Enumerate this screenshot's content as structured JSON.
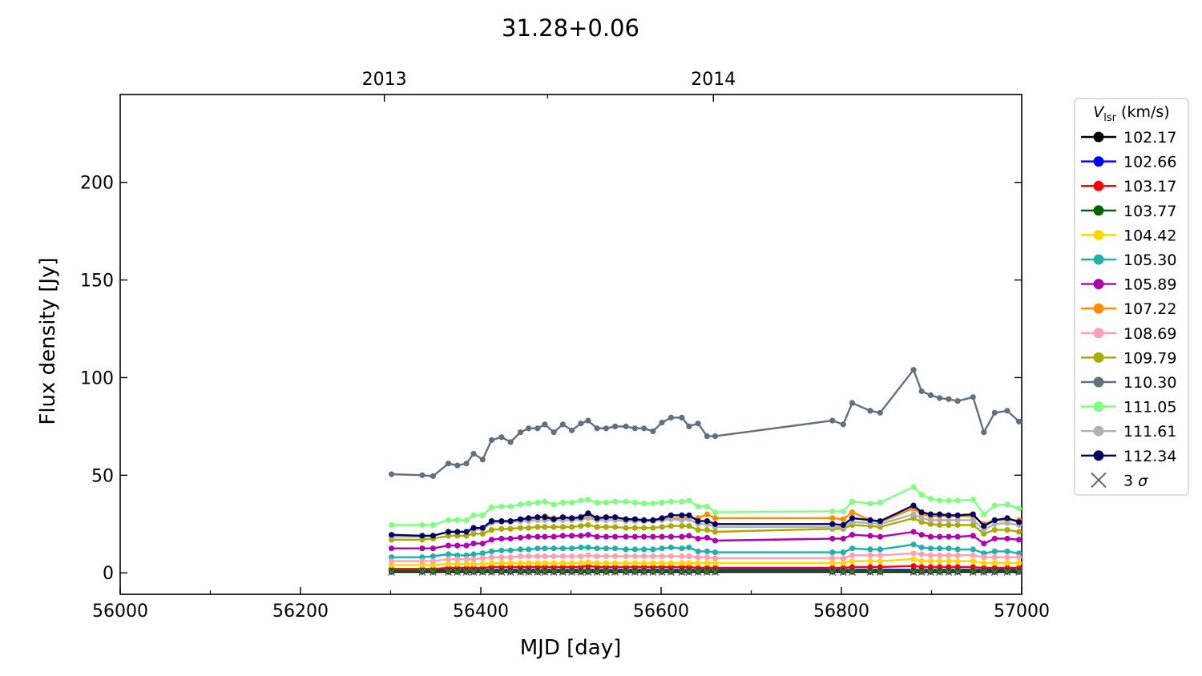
{
  "chart_data": {
    "type": "line",
    "title": "31.28+0.06",
    "xlabel": "MJD [day]",
    "ylabel": "Flux density [Jy]",
    "xlim": [
      56000,
      57000
    ],
    "ylim": [
      -11,
      245
    ],
    "x_ticks": [
      56000,
      56200,
      56400,
      56600,
      56800,
      57000
    ],
    "x_minor_ticks": [
      56100,
      56300,
      56500,
      56700,
      56900
    ],
    "y_ticks": [
      0,
      50,
      100,
      150,
      200
    ],
    "top_axis": {
      "ticks": [
        {
          "x": 56293,
          "label": "2013"
        },
        {
          "x": 56658,
          "label": "2014"
        }
      ],
      "minor_ticks": [
        56474
      ]
    },
    "grid": false,
    "legend": {
      "title_main": "V",
      "title_sub": "lsr",
      "title_unit": " (km/s)",
      "placement": "right-outside-top",
      "sigma_label": "3 σ",
      "sigma_color": "#666666"
    },
    "x": [
      56301,
      56335,
      56347,
      56364,
      56374,
      56384,
      56392,
      56402,
      56412,
      56423,
      56433,
      56444,
      56453,
      56463,
      56471,
      56481,
      56491,
      56501,
      56511,
      56519,
      56529,
      56539,
      56549,
      56561,
      56571,
      56581,
      56591,
      56601,
      56611,
      56623,
      56631,
      56641,
      56651,
      56660,
      56790,
      56802,
      56812,
      56832,
      56843,
      56880,
      56889,
      56899,
      56909,
      56919,
      56929,
      56946,
      56958,
      56970,
      56984,
      56997
    ],
    "upper_limit_x": [
      56301,
      56335,
      56347,
      56364,
      56374,
      56384,
      56392,
      56402,
      56412,
      56423,
      56433,
      56444,
      56453,
      56463,
      56471,
      56481,
      56491,
      56501,
      56511,
      56519,
      56529,
      56539,
      56549,
      56561,
      56571,
      56581,
      56591,
      56601,
      56611,
      56623,
      56631,
      56641,
      56651,
      56660,
      56790,
      56802,
      56812,
      56832,
      56843,
      56880,
      56889,
      56899,
      56909,
      56919,
      56929,
      56946,
      56958,
      56970,
      56984,
      56997
    ],
    "series": [
      {
        "name": "102.17",
        "color": "#000000",
        "values": [
          0.5,
          0.5,
          0.5,
          0.5,
          0.5,
          0.5,
          0.5,
          0.5,
          0.5,
          0.5,
          0.5,
          0.5,
          0.5,
          0.5,
          0.5,
          0.5,
          0.5,
          0.5,
          0.5,
          0.5,
          0.5,
          0.5,
          0.5,
          0.5,
          0.5,
          0.5,
          0.5,
          0.5,
          0.5,
          0.5,
          0.5,
          0.5,
          0.5,
          0.5,
          0.5,
          0.5,
          0.5,
          0.5,
          0.5,
          0.5,
          0.5,
          0.5,
          0.5,
          0.5,
          0.5,
          0.5,
          0.5,
          0.5,
          0.5,
          0.5
        ]
      },
      {
        "name": "102.66",
        "color": "#0000ff",
        "values": [
          1.5,
          1.5,
          1.5,
          1.5,
          1.5,
          1.5,
          1.5,
          1.5,
          1.5,
          1.5,
          1.5,
          1.5,
          1.5,
          1.5,
          1.5,
          1.5,
          1.5,
          1.5,
          1.5,
          1.5,
          1.5,
          1.5,
          1.5,
          1.5,
          1.5,
          1.5,
          1.5,
          1.5,
          1.5,
          1.5,
          1.5,
          1.5,
          1.5,
          1.5,
          1.5,
          1.5,
          1.5,
          1.5,
          1.5,
          1.5,
          1.5,
          1.5,
          1.5,
          1.5,
          1.5,
          1.5,
          1.5,
          1.5,
          1.5,
          1.5
        ]
      },
      {
        "name": "103.17",
        "color": "#ff0000",
        "values": [
          2,
          2,
          2,
          2.5,
          2.5,
          2.5,
          2.5,
          2.5,
          3,
          3,
          3,
          3,
          3,
          3,
          3,
          3,
          3,
          3,
          3,
          3.5,
          3,
          3,
          3,
          3,
          3,
          3,
          3,
          3,
          3,
          3,
          3,
          2.5,
          2.5,
          2.5,
          2.5,
          2.5,
          3,
          3,
          3,
          3.5,
          3,
          3,
          3,
          3,
          3,
          3,
          2.5,
          2.5,
          2.5,
          2.5
        ]
      },
      {
        "name": "103.77",
        "color": "#006400",
        "values": [
          1,
          1,
          1,
          1,
          1,
          1,
          1,
          1,
          1,
          1,
          1,
          1,
          1,
          1,
          1,
          1,
          1,
          1,
          1,
          1,
          1,
          1,
          1,
          1,
          1,
          1,
          1,
          1,
          1,
          1,
          1,
          1,
          1,
          1,
          1,
          1,
          1,
          1,
          1,
          1,
          1,
          1,
          1,
          1,
          1,
          1,
          1,
          1,
          1,
          1
        ]
      },
      {
        "name": "104.42",
        "color": "#ffd700",
        "values": [
          4,
          4,
          4,
          4.5,
          4.5,
          4.5,
          4.5,
          4.5,
          5,
          5,
          5,
          5,
          5,
          5,
          5,
          5,
          5,
          5,
          5,
          5.5,
          5,
          5,
          5,
          5,
          5,
          5,
          5,
          5,
          5,
          5,
          5,
          5,
          5,
          5,
          5,
          5,
          6,
          6,
          6,
          7,
          6,
          6,
          6,
          6,
          6,
          6,
          5,
          5,
          5,
          5
        ]
      },
      {
        "name": "105.30",
        "color": "#20b2aa",
        "values": [
          8,
          8,
          8.5,
          9.5,
          9,
          9,
          9.5,
          10,
          11,
          11.5,
          11.5,
          12,
          12,
          12.5,
          12.5,
          12.5,
          12.5,
          12.5,
          13,
          13,
          12.5,
          12.5,
          12.5,
          12,
          12,
          12,
          12,
          12.5,
          13,
          12.5,
          13,
          11,
          11,
          10.5,
          10.5,
          10.5,
          12.5,
          12,
          12,
          14.5,
          13,
          12.5,
          12.5,
          12.5,
          12,
          12,
          10,
          11,
          11,
          10
        ]
      },
      {
        "name": "105.89",
        "color": "#b000b0",
        "values": [
          12.5,
          12.5,
          12.5,
          14,
          14,
          14,
          15,
          15,
          17,
          17.5,
          17.5,
          18,
          18.5,
          18.5,
          18.5,
          18.5,
          19,
          19,
          19,
          19.5,
          18.5,
          18.5,
          18.5,
          18.5,
          18.5,
          18.5,
          18.5,
          18.5,
          18.5,
          18.5,
          19,
          17.5,
          18,
          16.5,
          17.5,
          17.5,
          19.5,
          19,
          18.5,
          21,
          19.5,
          18.5,
          18.5,
          18.5,
          18.5,
          19,
          15,
          17.5,
          17.5,
          17
        ]
      },
      {
        "name": "107.22",
        "color": "#ff8c00",
        "values": [
          19,
          19,
          19,
          21,
          21,
          21,
          22,
          22.5,
          26,
          26,
          26,
          27,
          27.5,
          28,
          29,
          28,
          28,
          28,
          28,
          29.5,
          27.5,
          28,
          28,
          27.5,
          27.5,
          26.5,
          27,
          27.5,
          28,
          28,
          28,
          28,
          30,
          28,
          28,
          27.5,
          31,
          27,
          26,
          33,
          30,
          29,
          29,
          29,
          29,
          29,
          25,
          27,
          27,
          27
        ]
      },
      {
        "name": "108.69",
        "color": "#ffa0b4",
        "values": [
          6,
          6,
          6,
          7,
          7,
          7,
          7,
          7.5,
          8,
          8,
          8,
          8.5,
          8.5,
          8.5,
          8.5,
          8.5,
          8.5,
          8.5,
          8.5,
          9,
          8.5,
          8.5,
          8.5,
          8.5,
          8.5,
          8.5,
          8.5,
          8.5,
          8.5,
          8.5,
          8.5,
          8,
          8,
          7.5,
          7.5,
          7.5,
          9,
          9,
          9,
          10,
          9.5,
          9,
          9,
          9,
          9,
          9,
          8,
          8,
          8,
          8
        ]
      },
      {
        "name": "109.79",
        "color": "#aaaa00",
        "values": [
          17,
          17,
          17.5,
          19,
          19,
          19,
          20,
          20,
          22,
          22.5,
          22.5,
          23,
          23,
          23.5,
          23.5,
          23.5,
          23.5,
          23.5,
          24,
          24.5,
          23.5,
          23.5,
          23.5,
          23,
          23,
          23,
          23,
          23.5,
          24,
          24,
          24,
          22,
          22,
          21,
          22.5,
          22.5,
          24.5,
          24,
          23.5,
          28,
          26,
          25,
          24.5,
          24.5,
          24.5,
          24.5,
          20,
          22,
          22,
          21
        ]
      },
      {
        "name": "110.30",
        "color": "#607080",
        "values": [
          50.5,
          50,
          49.5,
          56,
          55,
          56,
          61,
          58,
          68,
          69.5,
          67,
          72,
          74,
          74,
          76,
          72,
          76,
          73,
          76.5,
          78,
          74,
          74,
          75,
          75,
          74,
          74,
          72.5,
          77,
          79.5,
          79.5,
          75,
          76.5,
          70,
          70,
          78,
          76,
          87,
          83,
          82,
          104,
          93,
          91,
          89.5,
          89,
          88,
          90,
          72,
          82,
          83,
          77.5
        ]
      },
      {
        "name": "111.05",
        "color": "#80ff80",
        "values": [
          24.5,
          24.5,
          24.5,
          27,
          27,
          27,
          29.5,
          29.5,
          33.5,
          34,
          34,
          35,
          35.5,
          36,
          36.5,
          35,
          36,
          36,
          37,
          37.5,
          36,
          36,
          36.5,
          36.5,
          36,
          35.5,
          35.5,
          36,
          36.5,
          36.5,
          37,
          34,
          34,
          31,
          31.5,
          31.5,
          36.5,
          35.5,
          36,
          44,
          40,
          38,
          37,
          37,
          37,
          37.5,
          30,
          34.5,
          35,
          33
        ]
      },
      {
        "name": "111.61",
        "color": "#b0b0b0",
        "values": [
          18.5,
          18.5,
          19,
          21,
          21,
          21,
          22,
          22.5,
          25.5,
          26,
          26,
          26.5,
          26.5,
          27,
          27,
          27,
          27,
          27,
          27.5,
          28,
          27,
          27,
          27,
          26.5,
          26.5,
          26.5,
          26.5,
          27,
          27.5,
          27,
          27.5,
          25,
          25,
          23.5,
          23.5,
          23.5,
          26,
          25.5,
          25,
          30,
          28,
          27,
          27,
          27,
          27,
          27,
          22,
          25,
          25.5,
          24.5
        ]
      },
      {
        "name": "112.34",
        "color": "#000060",
        "values": [
          19.5,
          19,
          19,
          21,
          21,
          21,
          23,
          23,
          26.5,
          26.5,
          26.5,
          27.5,
          28,
          28.5,
          28.5,
          27.5,
          28.5,
          28,
          28.5,
          30.5,
          28,
          28.5,
          28.5,
          27.5,
          27.5,
          27,
          27,
          28,
          29.5,
          29.5,
          29.5,
          26.5,
          26.5,
          25,
          25,
          24.5,
          28,
          27,
          26.5,
          34.5,
          31,
          30,
          30,
          29.5,
          29.5,
          30,
          24,
          27,
          28,
          26
        ]
      }
    ]
  }
}
